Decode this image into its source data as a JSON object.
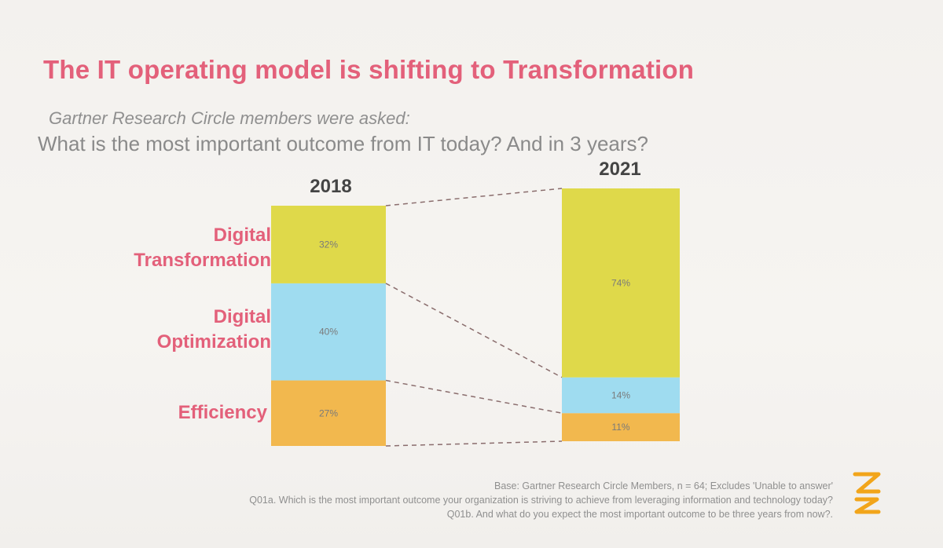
{
  "slide": {
    "title": "The IT operating model is shifting to Transformation",
    "question_intro": "Gartner Research Circle members were asked:",
    "question": "What is the most important outcome from IT today?  And in 3 years?",
    "footnotes": [
      "Base: Gartner Research Circle Members, n = 64; Excludes 'Unable to answer'",
      "Q01a. Which is the most important outcome your organization is striving to achieve from leveraging information and technology today?",
      "Q01b. And what do you expect the most important outcome to be three years from now?."
    ],
    "logo_icon": "gartner-logo-icon"
  },
  "chart_data": {
    "type": "bar",
    "stacked": true,
    "categories": [
      "2018",
      "2021"
    ],
    "series": [
      {
        "name": "Efficiency",
        "values": [
          27,
          11
        ],
        "labels": [
          "27%",
          "11%"
        ],
        "color": "#f2b84e"
      },
      {
        "name": "Digital Optimization",
        "values": [
          40,
          14
        ],
        "labels": [
          "40%",
          "14%"
        ],
        "color": "#9fdcf0"
      },
      {
        "name": "Digital Transformation",
        "values": [
          32,
          74
        ],
        "labels": [
          "32%",
          "74%"
        ],
        "color": "#dfd94a"
      }
    ],
    "category_labels": {
      "Digital Transformation": [
        "Digital",
        "Transformation"
      ],
      "Digital Optimization": [
        "Digital",
        "Optimization"
      ],
      "Efficiency": [
        "Efficiency"
      ]
    },
    "connector_style": "dashed",
    "grid": false,
    "legend": "left-side category labels"
  }
}
